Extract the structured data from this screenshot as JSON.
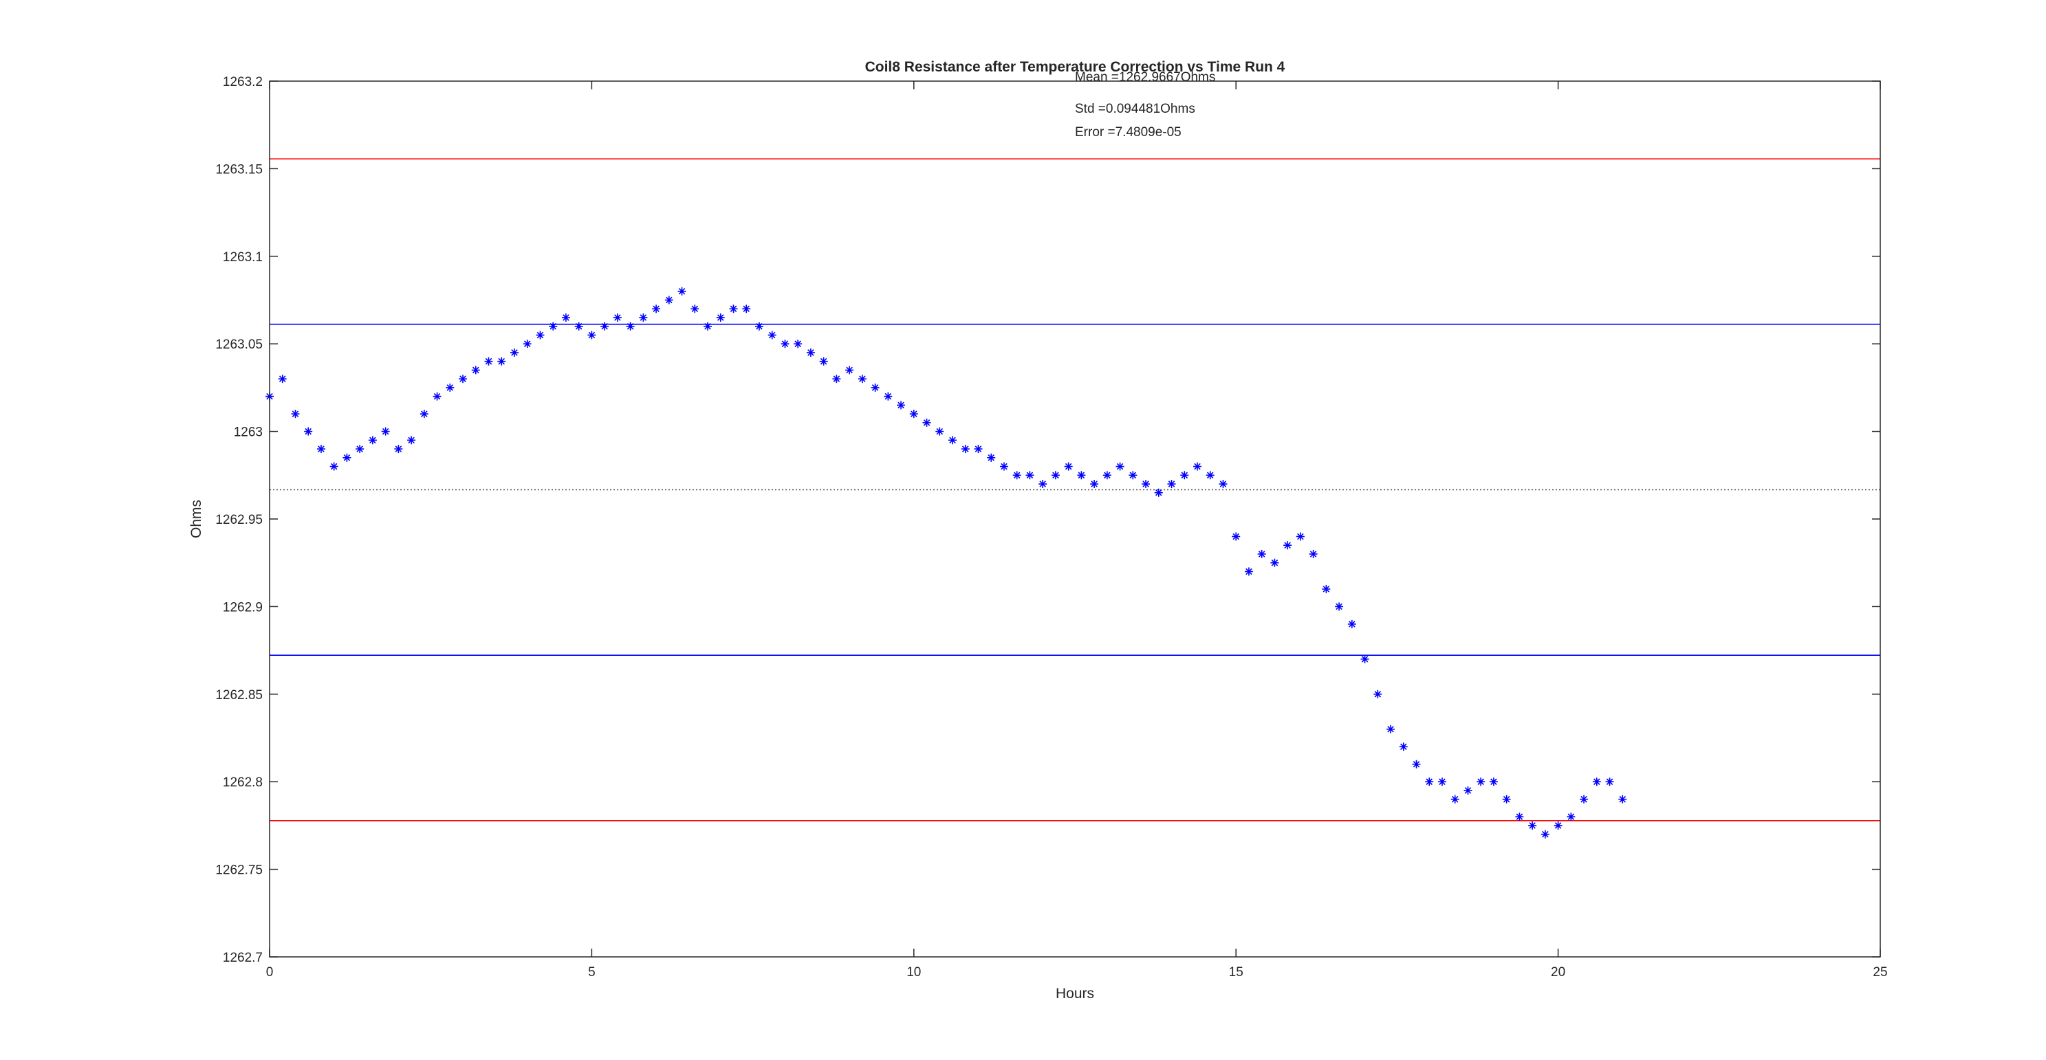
{
  "chart_data": {
    "type": "scatter",
    "title": "Coil8 Resistance after Temperature Correction vs Time Run 4",
    "xlabel": "Hours",
    "ylabel": "Ohms",
    "xlim": [
      0,
      25
    ],
    "ylim": [
      1262.7,
      1263.2
    ],
    "xticks": [
      0,
      5,
      10,
      15,
      20,
      25
    ],
    "xtick_labels": [
      "0",
      "5",
      "10",
      "15",
      "20",
      "25"
    ],
    "yticks": [
      1262.7,
      1262.75,
      1262.8,
      1262.85,
      1262.9,
      1262.95,
      1263,
      1263.05,
      1263.1,
      1263.15,
      1263.2
    ],
    "ytick_labels": [
      "1262.7",
      "1262.75",
      "1262.8",
      "1262.85",
      "1262.9",
      "1262.95",
      "1263",
      "1263.05",
      "1263.1",
      "1263.15",
      "1263.2"
    ],
    "grid": false,
    "marker": "*",
    "marker_color": "#0000ff",
    "annotations": [
      "Mean =1262.9667Ohms",
      "Std =0.094481Ohms",
      "Error =7.4809e-05"
    ],
    "reference_lines": [
      {
        "y": 1263.1556,
        "color": "#ff0000",
        "style": "solid"
      },
      {
        "y": 1263.0612,
        "color": "#0000ff",
        "style": "solid"
      },
      {
        "y": 1262.9667,
        "color": "#555555",
        "style": "dotted"
      },
      {
        "y": 1262.8722,
        "color": "#0000ff",
        "style": "solid"
      },
      {
        "y": 1262.7778,
        "color": "#ff0000",
        "style": "solid"
      }
    ],
    "series": [
      {
        "points_hint": "approximate; values read off the plot",
        "x": [
          0.0,
          0.2,
          0.4,
          0.6,
          0.8,
          1.0,
          1.2,
          1.4,
          1.6,
          1.8,
          2.0,
          2.2,
          2.4,
          2.6,
          2.8,
          3.0,
          3.2,
          3.4,
          3.6,
          3.8,
          4.0,
          4.2,
          4.4,
          4.6,
          4.8,
          5.0,
          5.2,
          5.4,
          5.6,
          5.8,
          6.0,
          6.2,
          6.4,
          6.6,
          6.8,
          7.0,
          7.2,
          7.4,
          7.6,
          7.8,
          8.0,
          8.2,
          8.4,
          8.6,
          8.8,
          9.0,
          9.2,
          9.4,
          9.6,
          9.8,
          10.0,
          10.2,
          10.4,
          10.6,
          10.8,
          11.0,
          11.2,
          11.4,
          11.6,
          11.8,
          12.0,
          12.2,
          12.4,
          12.6,
          12.8,
          13.0,
          13.2,
          13.4,
          13.6,
          13.8,
          14.0,
          14.2,
          14.4,
          14.6,
          14.8,
          15.0,
          15.2,
          15.4,
          15.6,
          15.8,
          16.0,
          16.2,
          16.4,
          16.6,
          16.8,
          17.0,
          17.2,
          17.4,
          17.6,
          17.8,
          18.0,
          18.2,
          18.4,
          18.6,
          18.8,
          19.0,
          19.2,
          19.4,
          19.6,
          19.8,
          20.0,
          20.2,
          20.4,
          20.6,
          20.8,
          21.0
        ],
        "y": [
          1263.02,
          1263.03,
          1263.01,
          1263.0,
          1262.99,
          1262.98,
          1262.985,
          1262.99,
          1262.995,
          1263.0,
          1262.99,
          1262.995,
          1263.01,
          1263.02,
          1263.025,
          1263.03,
          1263.035,
          1263.04,
          1263.04,
          1263.045,
          1263.05,
          1263.055,
          1263.06,
          1263.065,
          1263.06,
          1263.055,
          1263.06,
          1263.065,
          1263.06,
          1263.065,
          1263.07,
          1263.075,
          1263.08,
          1263.07,
          1263.06,
          1263.065,
          1263.07,
          1263.07,
          1263.06,
          1263.055,
          1263.05,
          1263.05,
          1263.045,
          1263.04,
          1263.03,
          1263.035,
          1263.03,
          1263.025,
          1263.02,
          1263.015,
          1263.01,
          1263.005,
          1263.0,
          1262.995,
          1262.99,
          1262.99,
          1262.985,
          1262.98,
          1262.975,
          1262.975,
          1262.97,
          1262.975,
          1262.98,
          1262.975,
          1262.97,
          1262.975,
          1262.98,
          1262.975,
          1262.97,
          1262.965,
          1262.97,
          1262.975,
          1262.98,
          1262.975,
          1262.97,
          1262.94,
          1262.92,
          1262.93,
          1262.925,
          1262.935,
          1262.94,
          1262.93,
          1262.91,
          1262.9,
          1262.89,
          1262.87,
          1262.85,
          1262.83,
          1262.82,
          1262.81,
          1262.8,
          1262.8,
          1262.79,
          1262.795,
          1262.8,
          1262.8,
          1262.79,
          1262.78,
          1262.775,
          1262.77,
          1262.775,
          1262.78,
          1262.79,
          1262.8,
          1262.8,
          1262.79
        ]
      }
    ]
  }
}
